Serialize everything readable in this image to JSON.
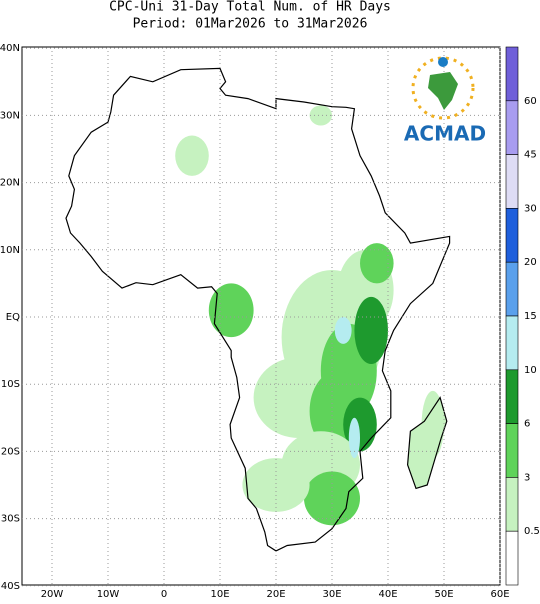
{
  "header": {
    "title": "CPC-Uni 31-Day Total Num. of HR Days",
    "period": "Period: 01Mar2026 to 31Mar2026"
  },
  "map": {
    "lat_ticks": [
      "40N",
      "30N",
      "20N",
      "10N",
      "EQ",
      "10S",
      "20S",
      "30S",
      "40S"
    ],
    "lon_ticks": [
      "20W",
      "10W",
      "0",
      "10E",
      "20E",
      "30E",
      "40E",
      "50E",
      "60E"
    ]
  },
  "colorbar": {
    "labels": [
      60,
      45,
      30,
      20,
      15,
      10,
      6,
      3,
      0.5
    ],
    "colors": [
      "#6f5fd9",
      "#a89cf0",
      "#dedcf5",
      "#1f5fdc",
      "#5aa0ec",
      "#b5ecf0",
      "#1e9a2e",
      "#5fd35a",
      "#c6f2c0",
      "#ffffff"
    ]
  },
  "logo": {
    "text": "ACMAD"
  }
}
